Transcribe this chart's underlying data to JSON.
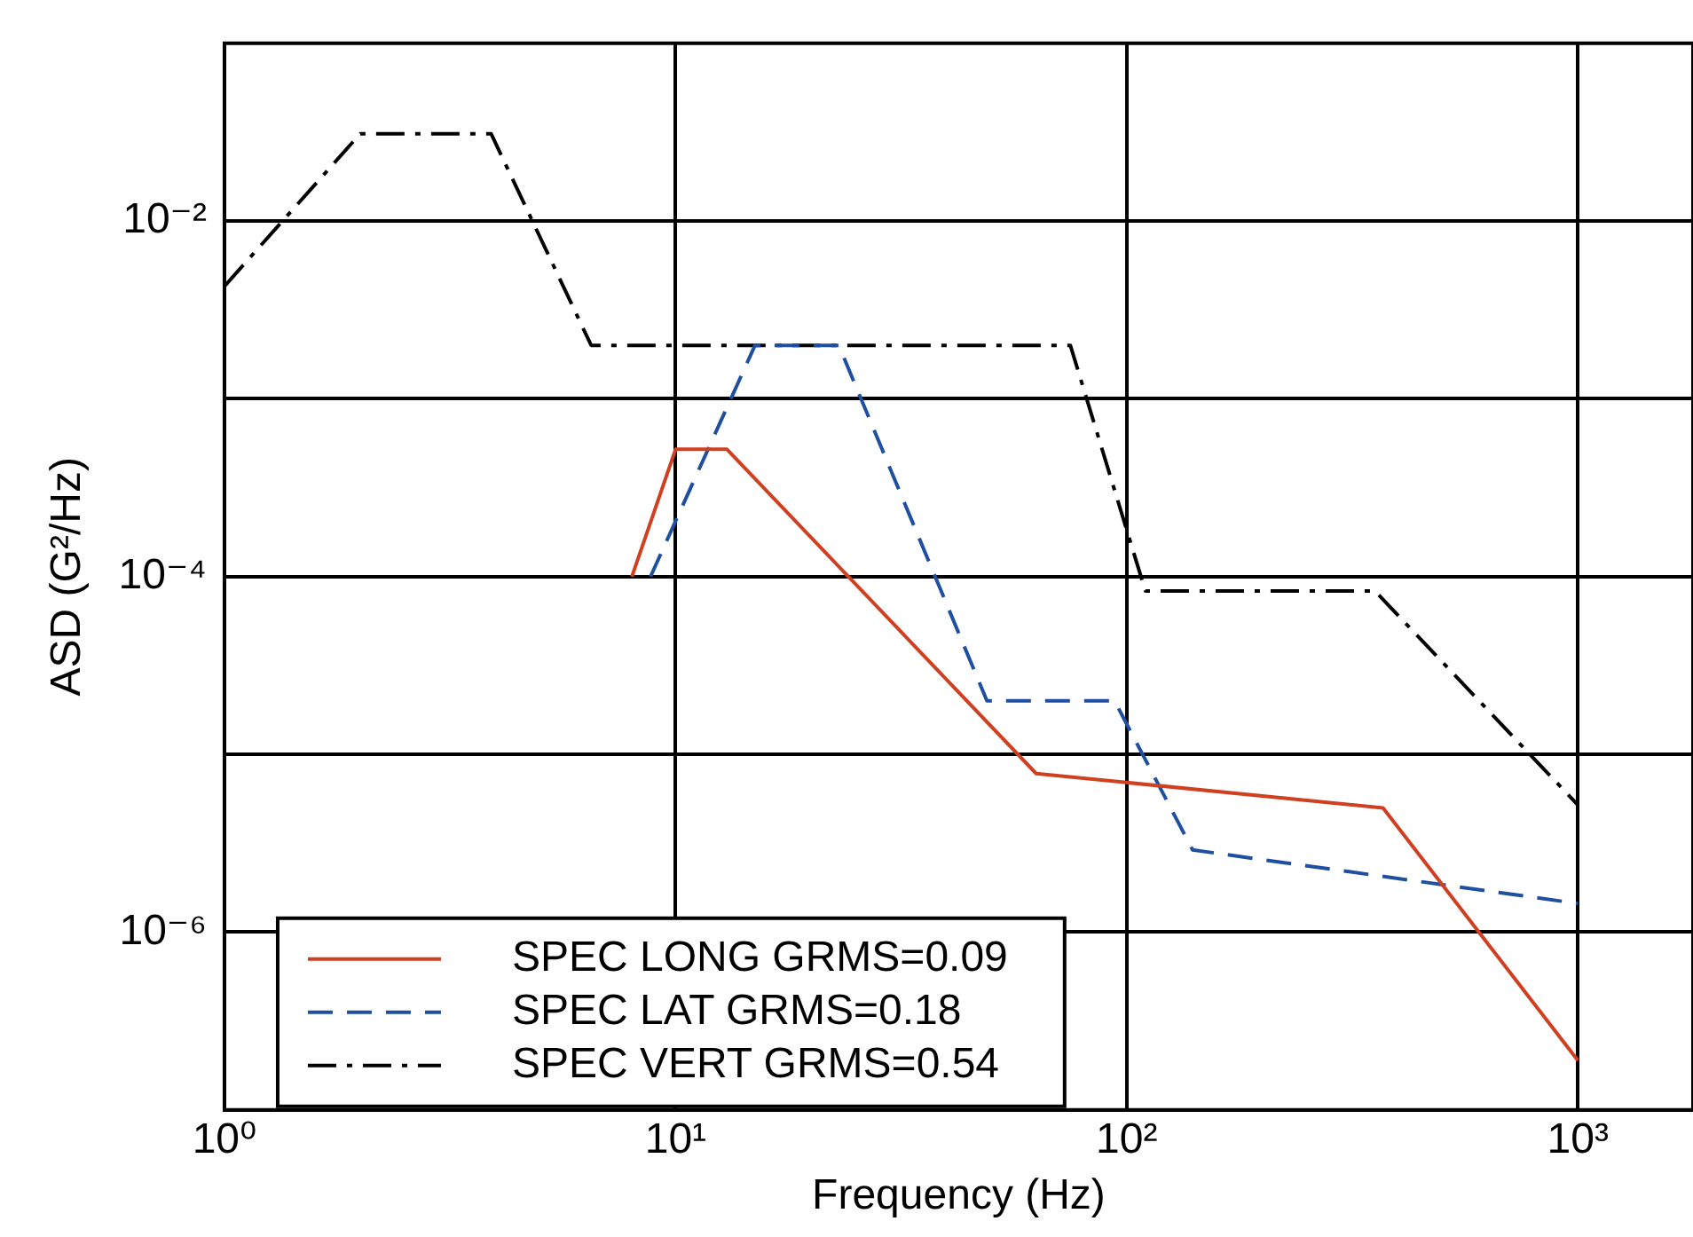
{
  "chart_data": {
    "type": "line",
    "xlabel": "Frequency (Hz)",
    "ylabel": "ASD (G²/Hz)",
    "log": "xy",
    "grid": true,
    "legend": "bottom left",
    "xlim": [
      1,
      1800
    ],
    "xticks": [
      {
        "value": 1,
        "label": "10⁰"
      },
      {
        "value": 10,
        "label": "10¹"
      },
      {
        "value": 100,
        "label": "10²"
      },
      {
        "value": 1000,
        "label": "10³"
      }
    ],
    "ylim": [
      1e-07,
      0.1
    ],
    "yticks": [
      {
        "value": 1e-06,
        "label": "10⁻⁶"
      },
      {
        "value": 1e-05,
        "label": null
      },
      {
        "value": 0.0001,
        "label": "10⁻⁴"
      },
      {
        "value": 0.001,
        "label": null
      },
      {
        "value": 0.01,
        "label": "10⁻²"
      }
    ],
    "series": [
      {
        "name": "SPEC LONG GRMS=0.09",
        "color": "#d04020",
        "line_style": "solid",
        "x": [
          8,
          10,
          13,
          63,
          370,
          1000
        ],
        "values": [
          0.0001,
          0.00052,
          0.00052,
          7.8e-06,
          5e-06,
          1.9e-07
        ]
      },
      {
        "name": "SPEC LAT GRMS=0.18",
        "color": "#1f4fa0",
        "line_style": "dashed",
        "x": [
          8.8,
          15,
          23,
          49,
          94,
          140,
          1000
        ],
        "values": [
          0.0001,
          0.002,
          0.002,
          2e-05,
          2e-05,
          2.9e-06,
          1.45e-06
        ]
      },
      {
        "name": "SPEC VERT GRMS=0.54",
        "color": "#000000",
        "line_style": "dashdot",
        "x": [
          1,
          2,
          3.9,
          6.5,
          75,
          110,
          355,
          1000
        ],
        "values": [
          0.0043,
          0.031,
          0.031,
          0.002,
          0.002,
          8.3e-05,
          8.3e-05,
          5.2e-06
        ]
      }
    ]
  }
}
